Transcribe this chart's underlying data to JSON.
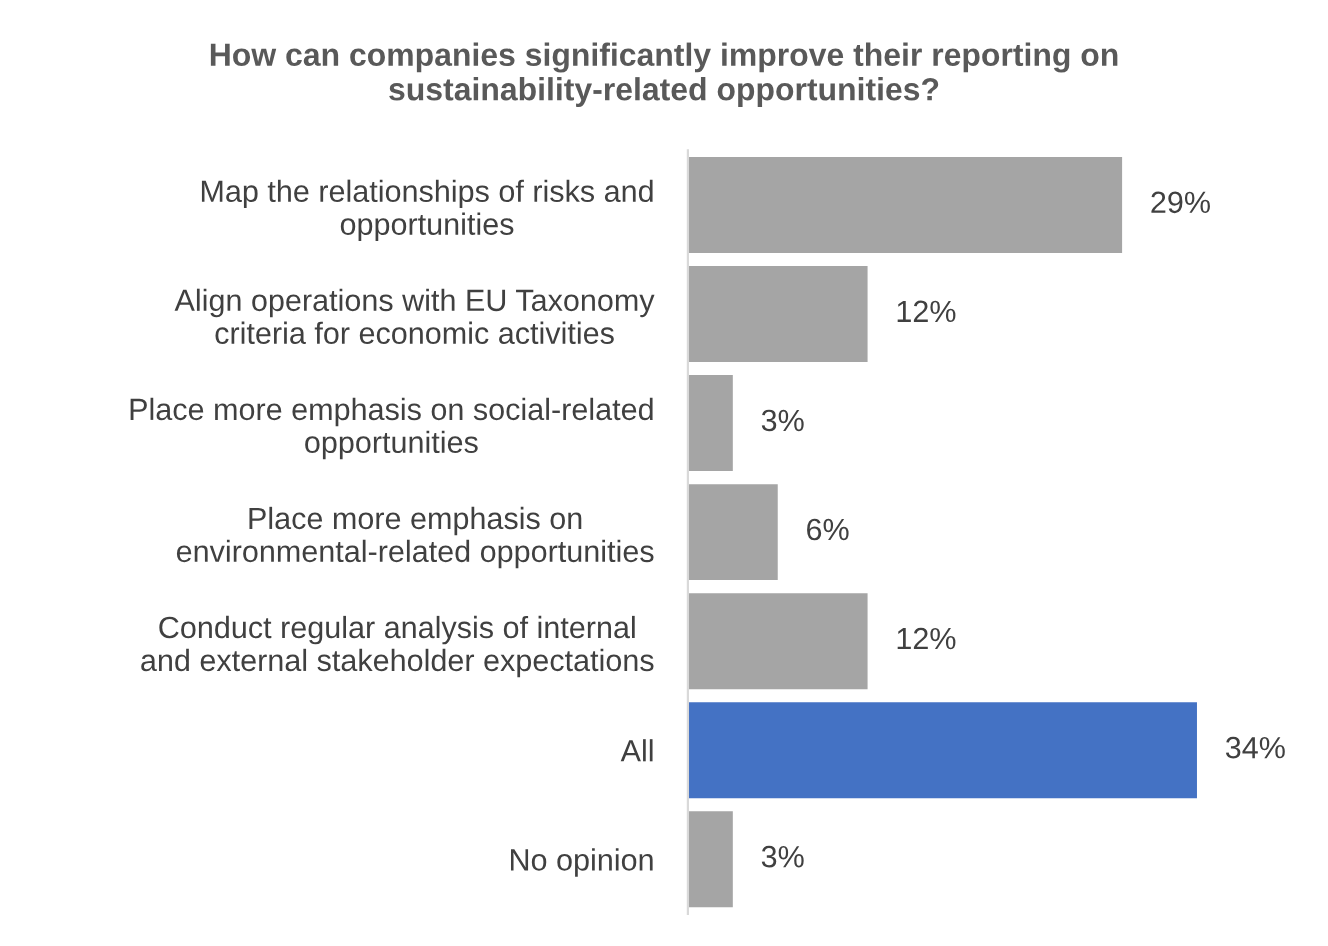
{
  "chart_data": {
    "type": "bar",
    "orientation": "horizontal",
    "title": "How can companies significantly improve their reporting on\nsustainability-related opportunities?",
    "categories": [
      "Map the relationships of risks and\nopportunities",
      "Align operations with EU Taxonomy\ncriteria for economic activities",
      "Place more emphasis on social-related\nopportunities",
      "Place more emphasis on\nenvironmental-related opportunities",
      "Conduct regular analysis of internal\nand external stakeholder expectations",
      "All",
      "No opinion"
    ],
    "values": [
      29,
      12,
      3,
      6,
      12,
      34,
      3
    ],
    "colors": [
      "#a5a5a5",
      "#a5a5a5",
      "#a5a5a5",
      "#a5a5a5",
      "#a5a5a5",
      "#4472c4",
      "#a5a5a5"
    ],
    "value_labels": [
      "29%",
      "12%",
      "3%",
      "6%",
      "12%",
      "34%",
      "3%"
    ],
    "grid": false,
    "legend": false
  }
}
